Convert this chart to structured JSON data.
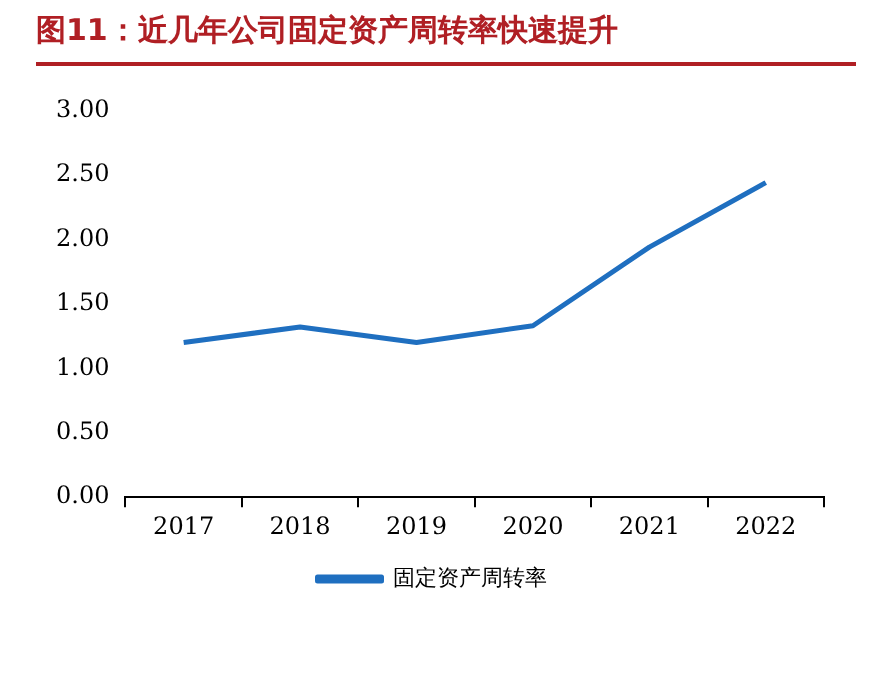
{
  "chart_data": {
    "type": "line",
    "title": "图11：近几年公司固定资产周转率快速提升",
    "categories": [
      "2017",
      "2018",
      "2019",
      "2020",
      "2021",
      "2022"
    ],
    "series": [
      {
        "name": "固定资产周转率",
        "color": "#1f6fc0",
        "values": [
          1.2,
          1.32,
          1.2,
          1.33,
          1.94,
          2.44
        ]
      }
    ],
    "ylim": [
      0,
      3
    ],
    "yticks": [
      {
        "value": 0,
        "label": "0.00"
      },
      {
        "value": 0.5,
        "label": "0.50"
      },
      {
        "value": 1,
        "label": "1.00"
      },
      {
        "value": 1.5,
        "label": "1.50"
      },
      {
        "value": 2,
        "label": "2.00"
      },
      {
        "value": 2.5,
        "label": "2.50"
      },
      {
        "value": 3,
        "label": "3.00"
      }
    ],
    "grid": false,
    "legend": "bottom"
  }
}
